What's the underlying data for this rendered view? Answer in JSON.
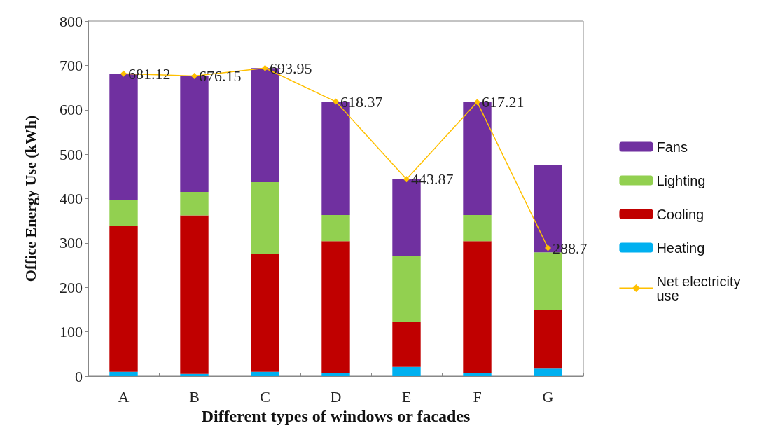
{
  "chart_data": {
    "type": "bar",
    "stacked": true,
    "xlabel": "Different types of windows or facades",
    "ylabel": "Office Energy Use (kWh)",
    "categories": [
      "A",
      "B",
      "C",
      "D",
      "E",
      "F",
      "G"
    ],
    "series": [
      {
        "name": "Heating",
        "color": "#00b0f0",
        "values": [
          10,
          5,
          10,
          7,
          21,
          7,
          17
        ]
      },
      {
        "name": "Cooling",
        "color": "#c00000",
        "values": [
          329,
          357,
          265,
          297,
          101,
          297,
          133
        ]
      },
      {
        "name": "Lighting",
        "color": "#92d050",
        "values": [
          58,
          53,
          162,
          59,
          148,
          59,
          129
        ]
      },
      {
        "name": "Fans",
        "color": "#7030a0",
        "values": [
          284,
          261,
          257,
          255,
          174,
          254,
          197
        ]
      },
      {
        "name": "Net electricity use",
        "type": "line",
        "color": "#ffc000",
        "marker": "diamond",
        "line_style": "solid",
        "data_labels": true,
        "values": [
          681.12,
          676.15,
          693.95,
          618.37,
          443.87,
          617.21,
          288.7
        ]
      }
    ],
    "ylim": [
      0,
      800
    ],
    "yticks": [
      0,
      100,
      200,
      300,
      400,
      500,
      600,
      700,
      800
    ],
    "grid": false,
    "legend": "right"
  }
}
